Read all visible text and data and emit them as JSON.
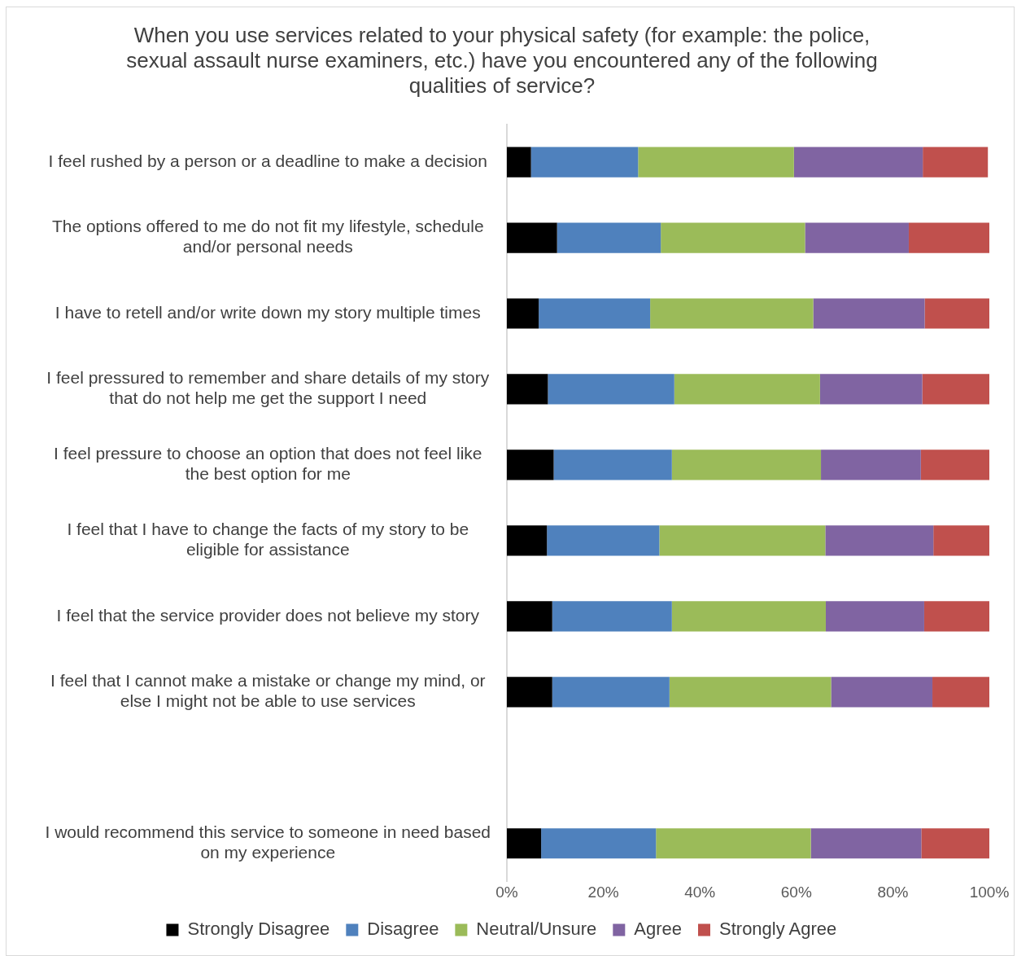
{
  "chart_data": {
    "type": "bar",
    "orientation": "horizontal",
    "stacked": true,
    "title": "When you use services related to your physical safety (for example: the police, sexual assault nurse examiners, etc.) have you encountered any of the following qualities of service?",
    "categories": [
      "I feel rushed by a person or a deadline to make a decision",
      "The options offered to me do not fit my lifestyle, schedule and/or personal needs",
      "I have to retell and/or write down my story multiple times",
      "I feel pressured to remember and share details of my story that do not help me get the support I need",
      "I feel pressure to choose an option that does not feel like the best option for me",
      "I feel that I have to change the facts of my story to be eligible for assistance",
      "I feel that the service provider does not believe my story",
      "I feel that I cannot make a mistake or change my mind, or else I might not be able to use services",
      null,
      "I would recommend this service to someone in need based on my experience"
    ],
    "series": [
      {
        "name": "Strongly Disagree",
        "color": "#000000",
        "values": [
          5.0,
          10.4,
          6.6,
          8.5,
          9.7,
          8.3,
          9.4,
          9.4,
          null,
          7.1
        ]
      },
      {
        "name": "Disagree",
        "color": "#4f81bd",
        "values": [
          22.2,
          21.5,
          23.1,
          26.2,
          24.5,
          23.3,
          24.8,
          24.3,
          null,
          23.8
        ]
      },
      {
        "name": "Neutral/Unsure",
        "color": "#9bbb59",
        "values": [
          32.3,
          29.9,
          33.8,
          30.2,
          30.9,
          34.4,
          31.9,
          33.5,
          null,
          32.1
        ]
      },
      {
        "name": "Agree",
        "color": "#8064a2",
        "values": [
          26.7,
          21.5,
          23.1,
          21.2,
          20.7,
          22.4,
          20.4,
          21.0,
          null,
          22.9
        ]
      },
      {
        "name": "Strongly Agree",
        "color": "#c0504d",
        "values": [
          13.5,
          16.7,
          13.4,
          13.9,
          14.2,
          11.6,
          13.5,
          11.8,
          null,
          14.1
        ]
      }
    ],
    "xlim": [
      0,
      100
    ],
    "xticks": [
      {
        "value": 0,
        "label": "0%"
      },
      {
        "value": 20,
        "label": "20%"
      },
      {
        "value": 40,
        "label": "40%"
      },
      {
        "value": 60,
        "label": "60%"
      },
      {
        "value": 80,
        "label": "80%"
      },
      {
        "value": 100,
        "label": "100%"
      }
    ],
    "legend": "bottom"
  }
}
